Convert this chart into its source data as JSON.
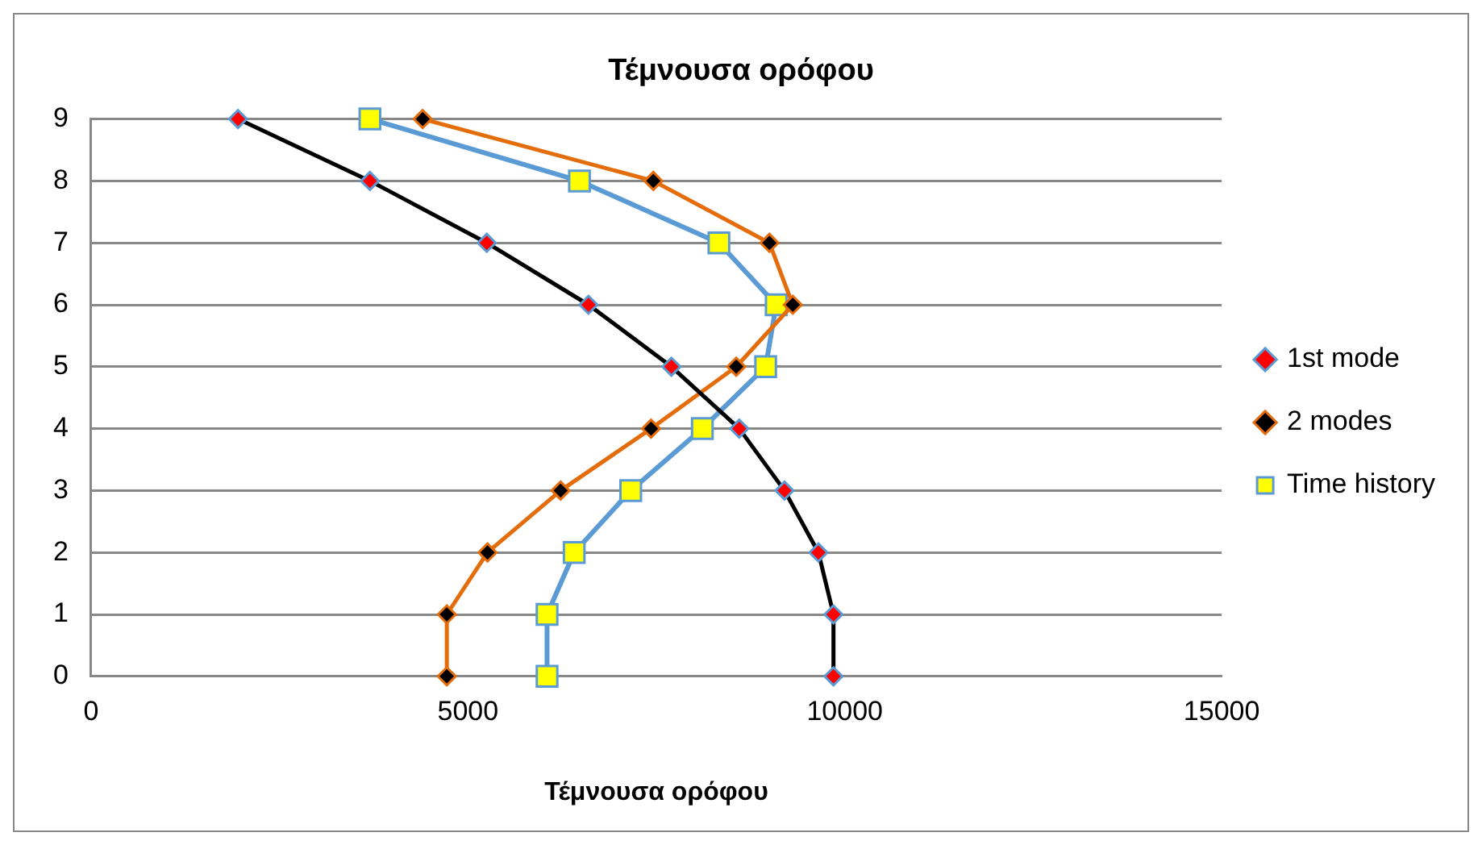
{
  "chart_data": {
    "type": "line",
    "title": "Τέμνουσα ορόφου",
    "xlabel": "Τέμνουσα ορόφου",
    "xlim": [
      0,
      15000
    ],
    "xticks": [
      0,
      5000,
      10000,
      15000
    ],
    "ylim": [
      0,
      9
    ],
    "yticks": [
      0,
      1,
      2,
      3,
      4,
      5,
      6,
      7,
      8,
      9
    ],
    "grid": "y",
    "legend": "right",
    "line_style": "solid",
    "series": [
      {
        "name": "1st mode",
        "color": "#000000",
        "marker": "diamond",
        "x": [
          9850,
          9850,
          9650,
          9200,
          8600,
          7700,
          6600,
          5250,
          3700,
          1950
        ],
        "values": [
          0,
          1,
          2,
          3,
          4,
          5,
          6,
          7,
          8,
          9
        ]
      },
      {
        "name": "2 modes",
        "color": "#e46c0a",
        "marker": "diamond",
        "x": [
          4720,
          4720,
          5260,
          6230,
          7430,
          8560,
          9310,
          9000,
          7460,
          4400
        ],
        "values": [
          0,
          1,
          2,
          3,
          4,
          5,
          6,
          7,
          8,
          9
        ]
      },
      {
        "name": "Time history",
        "color": "#5b9bd5",
        "marker": "square",
        "x": [
          6050,
          6050,
          6410,
          7160,
          8110,
          8950,
          9090,
          8330,
          6480,
          3700
        ],
        "values": [
          0,
          1,
          2,
          3,
          4,
          5,
          6,
          7,
          8,
          9
        ]
      }
    ]
  }
}
